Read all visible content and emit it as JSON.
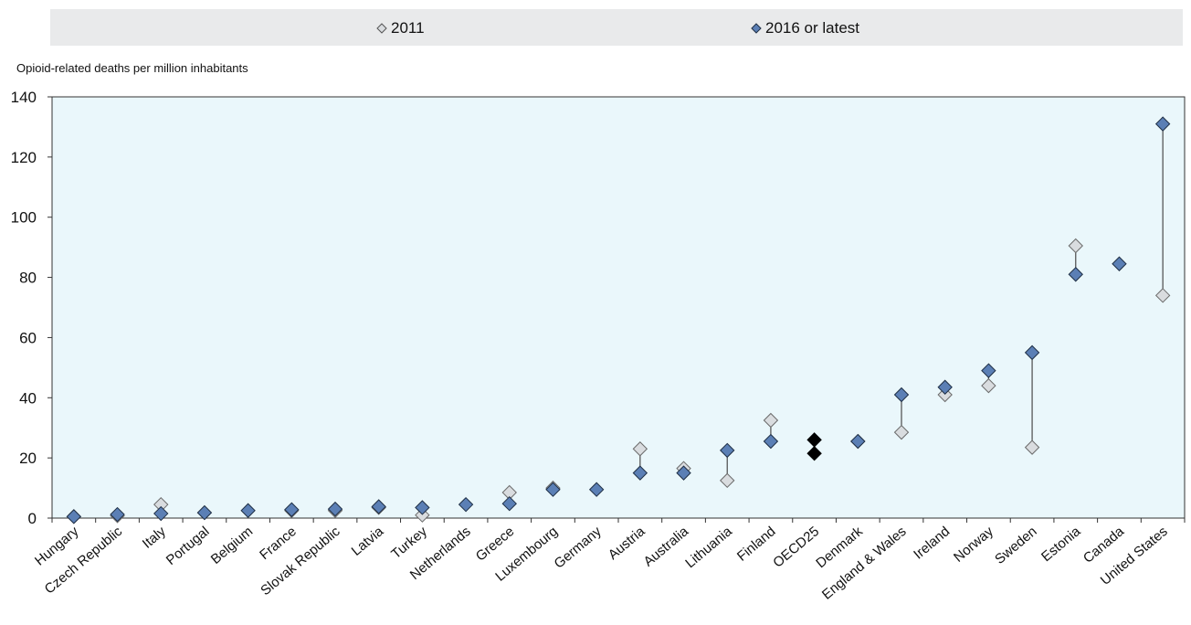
{
  "legend": {
    "items": [
      {
        "label": "2011",
        "color": "#d9dcdf"
      },
      {
        "label": "2016 or latest",
        "color": "#5b7fb5"
      }
    ]
  },
  "colors": {
    "plot_bg": "#eaf7fb",
    "marker_2011": "#d9dcdf",
    "marker_latest": "#5b7fb5",
    "marker_oecd": "#000000",
    "connector": "#4a4a4a"
  },
  "chart_data": {
    "type": "scatter",
    "ylabel": "Opioid-related deaths per million inhabitants",
    "ylim": [
      0,
      140
    ],
    "yticks": [
      0,
      20,
      40,
      60,
      80,
      100,
      120,
      140
    ],
    "grid": false,
    "legend_position": "top",
    "categories": [
      "Hungary",
      "Czech Republic",
      "Italy",
      "Portugal",
      "Belgium",
      "France",
      "Slovak Republic",
      "Latvia",
      "Turkey",
      "Netherlands",
      "Greece",
      "Luxembourg",
      "Germany",
      "Austria",
      "Australia",
      "Lithuania",
      "Finland",
      "OECD25",
      "Denmark",
      "England & Wales",
      "Ireland",
      "Norway",
      "Sweden",
      "Estonia",
      "Canada",
      "United States"
    ],
    "highlight_category": "OECD25",
    "series": [
      {
        "name": "2011",
        "values": [
          0.5,
          0.8,
          4.5,
          1.8,
          null,
          2.5,
          2.5,
          3.5,
          1.0,
          null,
          8.5,
          10.0,
          null,
          23.0,
          16.5,
          12.5,
          32.5,
          21.5,
          25.5,
          28.5,
          41.0,
          44.0,
          23.5,
          90.5,
          null,
          74.0
        ]
      },
      {
        "name": "2016 or latest",
        "values": [
          0.5,
          1.2,
          1.5,
          1.8,
          2.5,
          2.8,
          3.0,
          3.8,
          3.5,
          4.5,
          4.8,
          9.5,
          9.5,
          15.0,
          15.0,
          22.5,
          25.5,
          26.0,
          25.5,
          41.0,
          43.5,
          49.0,
          55.0,
          81.0,
          84.5,
          131.0
        ]
      }
    ]
  }
}
